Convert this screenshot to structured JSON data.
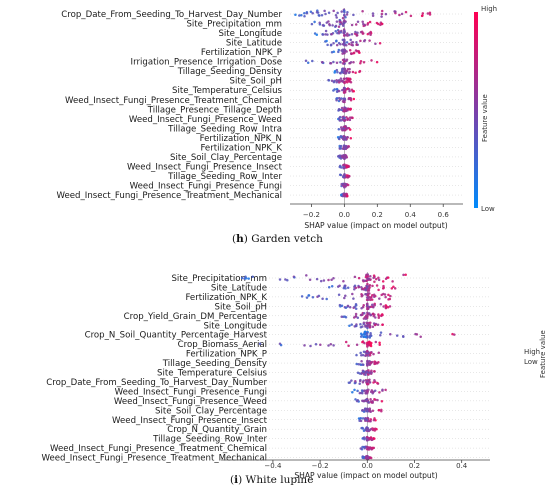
{
  "chart_data": [
    {
      "type": "beeswarm",
      "caption_letter": "h",
      "caption_text": "Garden vetch",
      "xlabel": "SHAP value (impact on model output)",
      "xlim": [
        -0.33,
        0.72
      ],
      "xticks": [
        -0.2,
        0.0,
        0.2,
        0.4,
        0.6
      ],
      "xtick_labels": [
        "−0.2",
        "0.0",
        "0.2",
        "0.4",
        "0.6"
      ],
      "colorbar": {
        "label": "Feature value",
        "high": "High",
        "low": "Low"
      },
      "features": [
        {
          "name": "Crop_Date_From_Seeding_To_Harvest_Day_Number",
          "range": [
            -0.3,
            0.62
          ],
          "spread": 0.9
        },
        {
          "name": "Site_Precipitation_mm",
          "range": [
            -0.2,
            0.25
          ],
          "spread": 0.75
        },
        {
          "name": "Site_Longitude",
          "range": [
            -0.18,
            0.22
          ],
          "spread": 0.7
        },
        {
          "name": "Site_Latitude",
          "range": [
            -0.12,
            0.28
          ],
          "spread": 0.6
        },
        {
          "name": "Fertilization_NPK_P",
          "range": [
            -0.08,
            0.1
          ],
          "spread": 0.4
        },
        {
          "name": "Irrigation_Presence_Irrigation_Dose",
          "range": [
            -0.26,
            0.24
          ],
          "spread": 0.35
        },
        {
          "name": "Tillage_Seeding_Density",
          "range": [
            -0.06,
            0.1
          ],
          "spread": 0.45
        },
        {
          "name": "Site_Soil_pH",
          "range": [
            -0.1,
            0.05
          ],
          "spread": 0.4
        },
        {
          "name": "Site_Temperature_Celsius",
          "range": [
            -0.07,
            0.06
          ],
          "spread": 0.35
        },
        {
          "name": "Weed_Insect_Fungi_Presence_Treatment_Chemical",
          "range": [
            -0.05,
            0.06
          ],
          "spread": 0.35
        },
        {
          "name": "Tillage_Presence_Tillage_Depth",
          "range": [
            -0.05,
            0.05
          ],
          "spread": 0.3
        },
        {
          "name": "Weed_Insect_Fungi_Presence_Weed",
          "range": [
            -0.04,
            0.05
          ],
          "spread": 0.3
        },
        {
          "name": "Tillage_Seeding_Row_Intra",
          "range": [
            -0.04,
            0.04
          ],
          "spread": 0.3
        },
        {
          "name": "Fertilization_NPK_N",
          "range": [
            -0.04,
            0.04
          ],
          "spread": 0.25
        },
        {
          "name": "Fertilization_NPK_K",
          "range": [
            -0.03,
            0.04
          ],
          "spread": 0.25
        },
        {
          "name": "Site_Soil_Clay_Percentage",
          "range": [
            -0.04,
            0.03
          ],
          "spread": 0.25
        },
        {
          "name": "Weed_Insect_Fungi_Presence_Insect",
          "range": [
            -0.03,
            0.03
          ],
          "spread": 0.2
        },
        {
          "name": "Tillage_Seeding_Row_Inter",
          "range": [
            -0.03,
            0.03
          ],
          "spread": 0.2
        },
        {
          "name": "Weed_Insect_Fungi_Presence_Fungi",
          "range": [
            -0.03,
            0.03
          ],
          "spread": 0.2
        },
        {
          "name": "Weed_Insect_Fungi_Presence_Treatment_Mechanical",
          "range": [
            -0.02,
            0.02
          ],
          "spread": 0.15
        }
      ]
    },
    {
      "type": "beeswarm",
      "caption_letter": "i",
      "caption_text": "White lupine",
      "xlabel": "SHAP value (impact on model output)",
      "xlim": [
        -0.62,
        0.52
      ],
      "xticks": [
        -0.4,
        -0.2,
        0.0,
        0.2,
        0.4
      ],
      "xtick_labels": [
        "−0.4",
        "−0.2",
        "0.0",
        "0.2",
        "0.4"
      ],
      "colorbar": {
        "label": "Feature value",
        "high": "High",
        "low": "Low"
      },
      "features": [
        {
          "name": "Site_Precipitation_mm",
          "range": [
            -0.56,
            0.2
          ],
          "spread": 0.9
        },
        {
          "name": "Site_Latitude",
          "range": [
            -0.18,
            0.12
          ],
          "spread": 0.7
        },
        {
          "name": "Fertilization_NPK_K",
          "range": [
            -0.3,
            0.15
          ],
          "spread": 0.7
        },
        {
          "name": "Site_Soil_pH",
          "range": [
            -0.12,
            0.1
          ],
          "spread": 0.6
        },
        {
          "name": "Crop_Yield_Grain_DM_Percentage",
          "range": [
            -0.12,
            0.08
          ],
          "spread": 0.55
        },
        {
          "name": "Site_Longitude",
          "range": [
            -0.08,
            0.1
          ],
          "spread": 0.5
        },
        {
          "name": "Crop_N_Soil_Quantity_Percentage_Harvest",
          "range": [
            -0.03,
            0.47
          ],
          "spread": 0.5
        },
        {
          "name": "Crop_Biomass_Aerial",
          "range": [
            -0.46,
            0.06
          ],
          "spread": 0.45
        },
        {
          "name": "Fertilization_NPK_P",
          "range": [
            -0.05,
            0.06
          ],
          "spread": 0.4
        },
        {
          "name": "Tillage_Seeding_Density",
          "range": [
            -0.05,
            0.05
          ],
          "spread": 0.4
        },
        {
          "name": "Site_Temperature_Celsius",
          "range": [
            -0.05,
            0.05
          ],
          "spread": 0.35
        },
        {
          "name": "Crop_Date_From_Seeding_To_Harvest_Day_Number",
          "range": [
            -0.08,
            0.05
          ],
          "spread": 0.35
        },
        {
          "name": "Weed_Insect_Fungi_Presence_Fungi",
          "range": [
            -0.07,
            0.12
          ],
          "spread": 0.3
        },
        {
          "name": "Weed_Insect_Fungi_Presence_Weed",
          "range": [
            -0.06,
            0.07
          ],
          "spread": 0.3
        },
        {
          "name": "Site_Soil_Clay_Percentage",
          "range": [
            -0.04,
            0.06
          ],
          "spread": 0.3
        },
        {
          "name": "Weed_Insect_Fungi_Presence_Insect",
          "range": [
            -0.04,
            0.04
          ],
          "spread": 0.25
        },
        {
          "name": "Crop_N_Quantity_Grain",
          "range": [
            -0.03,
            0.04
          ],
          "spread": 0.25
        },
        {
          "name": "Tillage_Seeding_Row_Inter",
          "range": [
            -0.03,
            0.03
          ],
          "spread": 0.2
        },
        {
          "name": "Weed_Insect_Fungi_Presence_Treatment_Chemical",
          "range": [
            -0.03,
            0.03
          ],
          "spread": 0.2
        },
        {
          "name": "Weed_Insect_Fungi_Presence_Treatment_Mechanical",
          "range": [
            -0.02,
            0.02
          ],
          "spread": 0.15
        }
      ]
    }
  ],
  "colors": {
    "high": "#ff0052",
    "low": "#008bfb"
  }
}
